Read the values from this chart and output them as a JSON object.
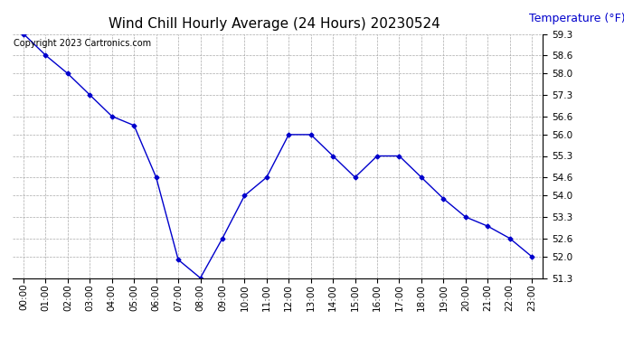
{
  "title": "Wind Chill Hourly Average (24 Hours) 20230524",
  "ylabel": "Temperature (°F)",
  "copyright_text": "Copyright 2023 Cartronics.com",
  "hours": [
    "00:00",
    "01:00",
    "02:00",
    "03:00",
    "04:00",
    "05:00",
    "06:00",
    "07:00",
    "08:00",
    "09:00",
    "10:00",
    "11:00",
    "12:00",
    "13:00",
    "14:00",
    "15:00",
    "16:00",
    "17:00",
    "18:00",
    "19:00",
    "20:00",
    "21:00",
    "22:00",
    "23:00"
  ],
  "values": [
    59.3,
    58.6,
    58.0,
    57.3,
    56.6,
    56.3,
    54.6,
    51.9,
    51.3,
    52.6,
    54.0,
    54.6,
    56.0,
    56.0,
    55.3,
    54.6,
    55.3,
    55.3,
    54.6,
    53.9,
    53.3,
    53.0,
    52.6,
    52.0
  ],
  "line_color": "#0000cc",
  "marker": "D",
  "marker_size": 2.5,
  "ylim_min": 51.3,
  "ylim_max": 59.3,
  "yticks": [
    51.3,
    52.0,
    52.6,
    53.3,
    54.0,
    54.6,
    55.3,
    56.0,
    56.6,
    57.3,
    58.0,
    58.6,
    59.3
  ],
  "bg_color": "#ffffff",
  "plot_bg_color": "#ffffff",
  "grid_color": "#aaaaaa",
  "title_fontsize": 11,
  "ylabel_fontsize": 9,
  "ylabel_color": "#0000cc",
  "copyright_fontsize": 7,
  "copyright_color": "#000000",
  "tick_fontsize": 7.5
}
